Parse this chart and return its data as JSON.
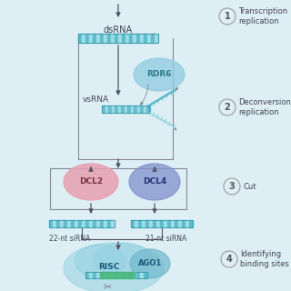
{
  "bg_color": "#ddeef5",
  "step_labels": [
    "Transcription\nreplication",
    "Deconversion\nreplication",
    "Cut",
    "Identifying\nbinding sites"
  ],
  "step_numbers": [
    "1",
    "2",
    "3",
    "4"
  ],
  "dsRNA_label": "dsRNA",
  "vsRNA_label": "vsRNA",
  "RDR6_label": "RDR6",
  "DCL2_label": "DCL2",
  "DCL4_label": "DCL4",
  "RISC_label": "RISC",
  "AGO1_label": "AGO1",
  "label_22nt": "22-nt siRNA",
  "label_21nt": "21-nt siRNA",
  "teal_color": "#5bbccc",
  "teal_light": "#a0dce8",
  "teal_dark": "#3a9aaa",
  "pink_color": "#e8a0b0",
  "blue_color": "#8090cc",
  "green_color": "#4cb87a",
  "arrow_color": "#555566",
  "text_color": "#444455",
  "box_color": "#c8dce8",
  "rdr6_color": "#90cce0",
  "risc_color": "#90d0e0"
}
